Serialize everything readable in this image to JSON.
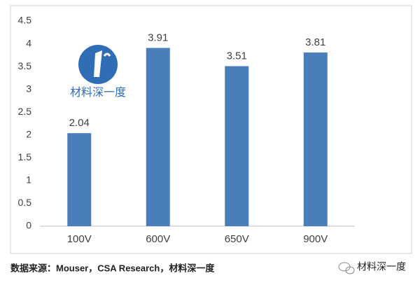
{
  "chart_data": {
    "type": "bar",
    "categories": [
      "100V",
      "600V",
      "650V",
      "900V"
    ],
    "values": [
      2.04,
      3.91,
      3.51,
      3.81
    ],
    "color": "#4a7ebb",
    "ylim": [
      0,
      4.5
    ],
    "yticks": [
      0,
      0.5,
      1,
      1.5,
      2,
      2.5,
      3,
      3.5,
      4,
      4.5
    ],
    "grid": false,
    "data_labels": true
  },
  "watermark": "材料深一度",
  "footer": {
    "source": "数据来源：Mouser，CSA Research，材料深一度",
    "brand": "材料深一度"
  }
}
